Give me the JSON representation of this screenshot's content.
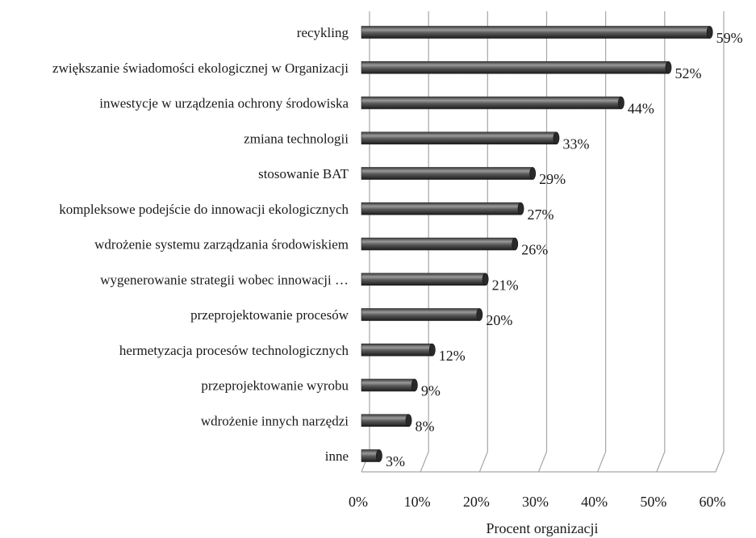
{
  "chart_data": {
    "type": "bar",
    "orientation": "horizontal",
    "categories": [
      "recykling",
      "zwiększanie świadomości ekologicznej w Organizacji",
      "inwestycje w urządzenia ochrony środowiska",
      "zmiana technologii",
      "stosowanie BAT",
      "kompleksowe podejście do innowacji ekologicznych",
      "wdrożenie systemu zarządzania środowiskiem",
      "wygenerowanie strategii wobec innowacji …",
      "przeprojektowanie procesów",
      "hermetyzacja procesów technologicznych",
      "przeprojektowanie wyrobu",
      "wdrożenie innych narzędzi",
      "inne"
    ],
    "values": [
      59,
      52,
      44,
      33,
      29,
      27,
      26,
      21,
      20,
      12,
      9,
      8,
      3
    ],
    "value_labels": [
      "59%",
      "52%",
      "44%",
      "33%",
      "29%",
      "27%",
      "26%",
      "21%",
      "20%",
      "12%",
      "9%",
      "8%",
      "3%"
    ],
    "xlim": [
      0,
      60
    ],
    "x_ticks": [
      "0%",
      "10%",
      "20%",
      "30%",
      "40%",
      "50%",
      "60%"
    ],
    "xlabel": "Procent organizacji",
    "ylabel": "",
    "title": "",
    "grid": "vertical",
    "legend": "none",
    "style": "3d-cylinder",
    "colors": {
      "bar": "#4d4d4d",
      "bar_highlight": "#9a9a9a",
      "bar_shadow": "#1c1c1c",
      "grid": "#a6a6a6"
    }
  }
}
